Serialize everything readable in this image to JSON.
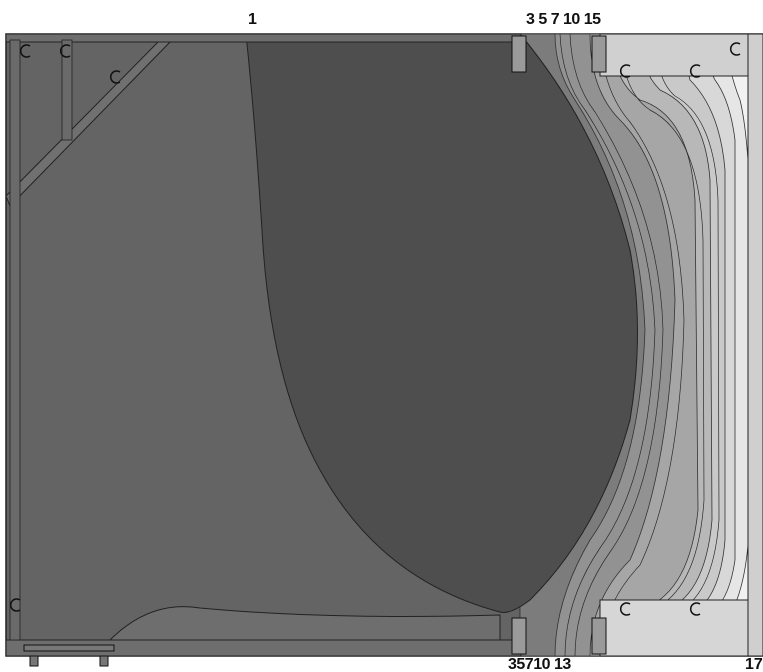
{
  "labels": {
    "top_left": "1",
    "top_right": "3 5 7 10 15",
    "bottom_right": "35710 13",
    "bottom_edge": "17"
  },
  "colors": {
    "background": "#ffffff",
    "frame_region": "#646464",
    "core_region": "#4e4e4e",
    "band_1": "#7c7c7c",
    "band_2": "#929292",
    "band_3": "#a6a6a6",
    "band_4": "#b8b8b8",
    "band_5": "#c9c9c9",
    "band_6": "#d8d8d8",
    "band_7": "#e6e6e6",
    "band_8": "#f1f1f1",
    "outline": "#222222"
  }
}
